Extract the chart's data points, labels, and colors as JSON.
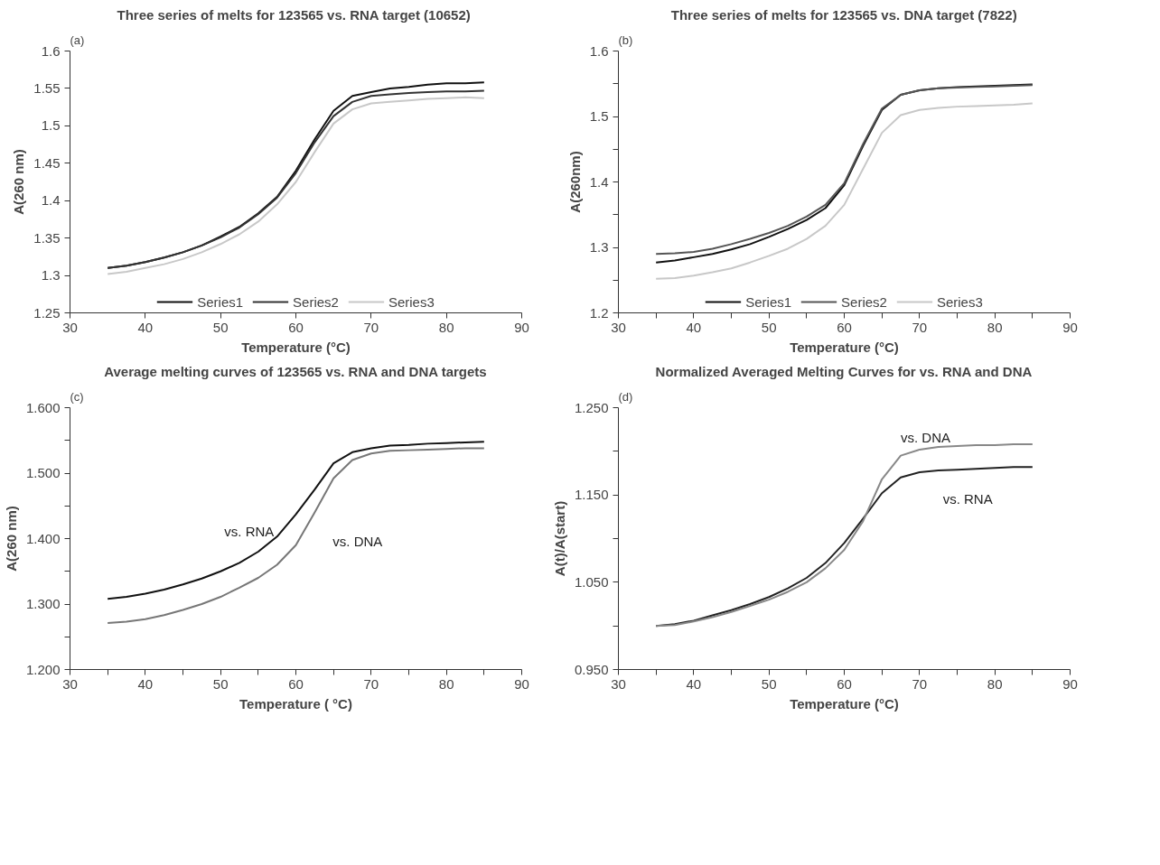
{
  "chart_data": [
    {
      "type": "line",
      "title": "Three series of melts for 123565  vs. RNA target (10652)",
      "annotations": [
        "(a)"
      ],
      "xlabel": "Temperature (°C)",
      "ylabel": "A(260 nm)",
      "legend": "bottom",
      "grid": false,
      "line_style": "solid",
      "x": [
        35,
        37.5,
        40,
        42.5,
        45,
        47.5,
        50,
        52.5,
        55,
        57.5,
        60,
        62.5,
        65,
        67.5,
        70,
        72.5,
        75,
        77.5,
        80,
        82.5,
        85
      ],
      "xlim": [
        30,
        90
      ],
      "xticks": [
        30,
        40,
        50,
        60,
        70,
        80,
        90
      ],
      "ylim": [
        1.25,
        1.6
      ],
      "yticks": [
        1.25,
        1.3,
        1.35,
        1.4,
        1.45,
        1.5,
        1.55,
        1.6
      ],
      "series": [
        {
          "name": "Series1",
          "color": "#111111",
          "values": [
            1.31,
            1.313,
            1.318,
            1.324,
            1.331,
            1.34,
            1.352,
            1.365,
            1.383,
            1.405,
            1.44,
            1.482,
            1.52,
            1.54,
            1.545,
            1.55,
            1.552,
            1.555,
            1.557,
            1.557,
            1.558
          ]
        },
        {
          "name": "Series2",
          "color": "#333333",
          "values": [
            1.31,
            1.313,
            1.318,
            1.324,
            1.331,
            1.34,
            1.351,
            1.364,
            1.382,
            1.404,
            1.437,
            1.478,
            1.513,
            1.532,
            1.54,
            1.542,
            1.544,
            1.545,
            1.546,
            1.546,
            1.547
          ]
        },
        {
          "name": "Series3",
          "color": "#c8c8c8",
          "values": [
            1.302,
            1.305,
            1.31,
            1.315,
            1.322,
            1.331,
            1.342,
            1.355,
            1.372,
            1.395,
            1.425,
            1.465,
            1.503,
            1.522,
            1.53,
            1.532,
            1.534,
            1.536,
            1.537,
            1.538,
            1.537
          ]
        }
      ]
    },
    {
      "type": "line",
      "title": "Three series of melts for 123565 vs. DNA target (7822)",
      "annotations": [
        "(b)"
      ],
      "xlabel": "Temperature (°C)",
      "ylabel": "A(260nm)",
      "legend": "bottom",
      "grid": false,
      "line_style": "solid",
      "x": [
        35,
        37.5,
        40,
        42.5,
        45,
        47.5,
        50,
        52.5,
        55,
        57.5,
        60,
        62.5,
        65,
        67.5,
        70,
        72.5,
        75,
        77.5,
        80,
        82.5,
        85
      ],
      "xlim": [
        30,
        90
      ],
      "xticks": [
        30,
        {
          "value": 35,
          "label": null
        },
        40,
        {
          "value": 45,
          "label": null
        },
        50,
        {
          "value": 55,
          "label": null
        },
        60,
        {
          "value": 65,
          "label": null
        },
        70,
        {
          "value": 75,
          "label": null
        },
        80,
        {
          "value": 85,
          "label": null
        },
        90
      ],
      "ylim": [
        1.2,
        1.6
      ],
      "yticks": [
        1.2,
        {
          "value": 1.25,
          "label": null
        },
        1.3,
        {
          "value": 1.35,
          "label": null
        },
        1.4,
        {
          "value": 1.45,
          "label": null
        },
        1.5,
        {
          "value": 1.55,
          "label": null
        },
        1.6
      ],
      "series": [
        {
          "name": "Series1",
          "color": "#111111",
          "values": [
            1.277,
            1.28,
            1.285,
            1.29,
            1.297,
            1.305,
            1.316,
            1.328,
            1.342,
            1.36,
            1.395,
            1.455,
            1.51,
            1.533,
            1.54,
            1.543,
            1.545,
            1.546,
            1.547,
            1.548,
            1.549
          ]
        },
        {
          "name": "Series2",
          "color": "#555555",
          "values": [
            1.29,
            1.291,
            1.293,
            1.298,
            1.305,
            1.313,
            1.322,
            1.333,
            1.347,
            1.365,
            1.398,
            1.458,
            1.512,
            1.533,
            1.54,
            1.543,
            1.544,
            1.545,
            1.546,
            1.547,
            1.548
          ]
        },
        {
          "name": "Series3",
          "color": "#c8c8c8",
          "values": [
            1.252,
            1.253,
            1.257,
            1.262,
            1.268,
            1.277,
            1.287,
            1.298,
            1.313,
            1.333,
            1.365,
            1.42,
            1.475,
            1.502,
            1.51,
            1.513,
            1.515,
            1.516,
            1.517,
            1.518,
            1.52
          ]
        }
      ]
    },
    {
      "type": "line",
      "title": "Average melting curves of 123565 vs. RNA and DNA targets",
      "annotations": [
        "(c)"
      ],
      "xlabel": "Temperature ( °C)",
      "ylabel": "A(260 nm)",
      "grid": false,
      "line_style": "solid",
      "x": [
        35,
        37.5,
        40,
        42.5,
        45,
        47.5,
        50,
        52.5,
        55,
        57.5,
        60,
        62.5,
        65,
        67.5,
        70,
        72.5,
        75,
        77.5,
        80,
        82.5,
        85
      ],
      "xlim": [
        30,
        90
      ],
      "xticks": [
        30,
        {
          "value": 35,
          "label": null
        },
        40,
        {
          "value": 45,
          "label": null
        },
        50,
        {
          "value": 55,
          "label": null
        },
        60,
        {
          "value": 65,
          "label": null
        },
        70,
        {
          "value": 75,
          "label": null
        },
        80,
        {
          "value": 85,
          "label": null
        },
        90
      ],
      "ylim": [
        1.2,
        1.6
      ],
      "yticks": [
        {
          "value": 1.2,
          "label": "1.200"
        },
        {
          "value": 1.25,
          "label": null
        },
        {
          "value": 1.3,
          "label": "1.300"
        },
        {
          "value": 1.35,
          "label": null
        },
        {
          "value": 1.4,
          "label": "1.400"
        },
        {
          "value": 1.45,
          "label": null
        },
        {
          "value": 1.5,
          "label": "1.500"
        },
        {
          "value": 1.55,
          "label": null
        },
        {
          "value": 1.6,
          "label": "1.600"
        }
      ],
      "series": [
        {
          "name": "vs. RNA",
          "color": "#111111",
          "values": [
            1.308,
            1.311,
            1.316,
            1.322,
            1.33,
            1.339,
            1.35,
            1.363,
            1.38,
            1.403,
            1.437,
            1.475,
            1.515,
            1.532,
            1.538,
            1.542,
            1.543,
            1.545,
            1.546,
            1.547,
            1.548
          ]
        },
        {
          "name": "vs. DNA",
          "color": "#777777",
          "values": [
            1.271,
            1.273,
            1.277,
            1.283,
            1.291,
            1.3,
            1.311,
            1.325,
            1.34,
            1.36,
            1.39,
            1.44,
            1.492,
            1.52,
            1.53,
            1.534,
            1.535,
            1.536,
            1.537,
            1.538,
            1.538
          ]
        }
      ]
    },
    {
      "type": "line",
      "title": "Normalized Averaged Melting Curves for vs. RNA and DNA",
      "annotations": [
        "(d)"
      ],
      "xlabel": "Temperature (°C)",
      "ylabel": "A(t)/A(start)",
      "grid": false,
      "line_style": "solid",
      "x": [
        35,
        37.5,
        40,
        42.5,
        45,
        47.5,
        50,
        52.5,
        55,
        57.5,
        60,
        62.5,
        65,
        67.5,
        70,
        72.5,
        75,
        77.5,
        80,
        82.5,
        85
      ],
      "xlim": [
        30,
        90
      ],
      "xticks": [
        30,
        {
          "value": 35,
          "label": null
        },
        40,
        {
          "value": 45,
          "label": null
        },
        50,
        {
          "value": 55,
          "label": null
        },
        60,
        {
          "value": 65,
          "label": null
        },
        70,
        {
          "value": 75,
          "label": null
        },
        80,
        {
          "value": 85,
          "label": null
        },
        90
      ],
      "ylim": [
        0.95,
        1.25
      ],
      "yticks": [
        {
          "value": 0.95,
          "label": "0.950"
        },
        {
          "value": 1.0,
          "label": null
        },
        {
          "value": 1.05,
          "label": "1.050"
        },
        {
          "value": 1.1,
          "label": null
        },
        {
          "value": 1.15,
          "label": "1.150"
        },
        {
          "value": 1.2,
          "label": null
        },
        {
          "value": 1.25,
          "label": "1.250"
        }
      ],
      "series": [
        {
          "name": "vs. RNA",
          "color": "#222222",
          "values": [
            1.0,
            1.002,
            1.006,
            1.012,
            1.018,
            1.025,
            1.033,
            1.043,
            1.055,
            1.072,
            1.095,
            1.123,
            1.152,
            1.17,
            1.176,
            1.178,
            1.179,
            1.18,
            1.181,
            1.182,
            1.182
          ]
        },
        {
          "name": "vs. DNA",
          "color": "#888888",
          "values": [
            1.0,
            1.001,
            1.005,
            1.01,
            1.016,
            1.023,
            1.03,
            1.039,
            1.05,
            1.066,
            1.087,
            1.12,
            1.168,
            1.195,
            1.202,
            1.205,
            1.206,
            1.207,
            1.207,
            1.208,
            1.208
          ]
        }
      ]
    }
  ]
}
